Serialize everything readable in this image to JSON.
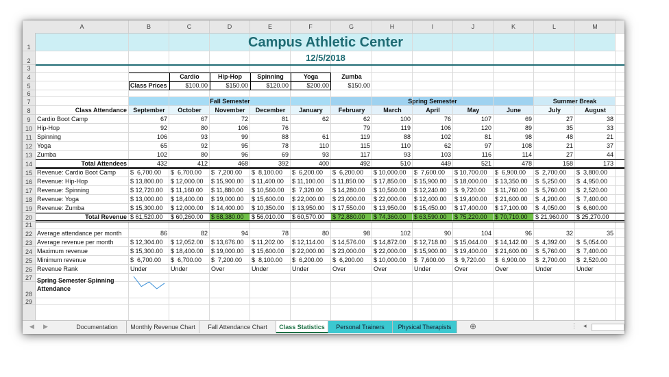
{
  "columns": [
    "A",
    "B",
    "C",
    "D",
    "E",
    "F",
    "G",
    "H",
    "I",
    "J",
    "K",
    "L",
    "M"
  ],
  "rows": [
    "1",
    "2",
    "3",
    "4",
    "5",
    "6",
    "7",
    "8",
    "9",
    "10",
    "11",
    "12",
    "13",
    "14",
    "15",
    "16",
    "17",
    "18",
    "19",
    "20",
    "21",
    "22",
    "23",
    "24",
    "25",
    "26",
    "27",
    "28",
    "29"
  ],
  "title": "Campus Athletic Center",
  "date": "12/5/2018",
  "prices": {
    "label": "Class Prices",
    "headers": [
      "Cardio",
      "Hip-Hop",
      "Spinning",
      "Yoga",
      "Zumba"
    ],
    "values": [
      "$100.00",
      "$150.00",
      "$120.00",
      "$200.00",
      "$150.00"
    ]
  },
  "groups": {
    "fall": "Fall Semester",
    "spring": "Spring Semester",
    "summer": "Summer Break"
  },
  "attendance_label": "Class Attendance",
  "months": [
    "September",
    "October",
    "November",
    "December",
    "January",
    "February",
    "March",
    "April",
    "May",
    "June",
    "July",
    "August"
  ],
  "attendance": [
    {
      "name": "Cardio Boot Camp",
      "values": [
        "67",
        "67",
        "72",
        "81",
        "62",
        "62",
        "100",
        "76",
        "107",
        "69",
        "27",
        "38"
      ]
    },
    {
      "name": "Hip-Hop",
      "values": [
        "92",
        "80",
        "106",
        "76",
        "",
        "79",
        "119",
        "106",
        "120",
        "89",
        "35",
        "33"
      ]
    },
    {
      "name": "Spinning",
      "values": [
        "106",
        "93",
        "99",
        "88",
        "61",
        "119",
        "88",
        "102",
        "81",
        "98",
        "48",
        "21"
      ]
    },
    {
      "name": "Yoga",
      "values": [
        "65",
        "92",
        "95",
        "78",
        "110",
        "115",
        "110",
        "62",
        "97",
        "108",
        "21",
        "37"
      ]
    },
    {
      "name": "Zumba",
      "values": [
        "102",
        "80",
        "96",
        "69",
        "93",
        "117",
        "93",
        "103",
        "116",
        "114",
        "27",
        "44"
      ]
    }
  ],
  "total_attendees": {
    "label": "Total Attendees",
    "values": [
      "432",
      "412",
      "468",
      "392",
      "400",
      "492",
      "510",
      "449",
      "521",
      "478",
      "158",
      "173"
    ]
  },
  "revenue": [
    {
      "name": "Revenue: Cardio Boot Camp",
      "values": [
        "$  6,700.00",
        "$  6,700.00",
        "$  7,200.00",
        "$  8,100.00",
        "$  6,200.00",
        "$  6,200.00",
        "$ 10,000.00",
        "$  7,600.00",
        "$ 10,700.00",
        "$  6,900.00",
        "$  2,700.00",
        "$  3,800.00"
      ]
    },
    {
      "name": "Revenue: Hip-Hop",
      "values": [
        "$ 13,800.00",
        "$ 12,000.00",
        "$ 15,900.00",
        "$ 11,400.00",
        "$ 11,100.00",
        "$ 11,850.00",
        "$ 17,850.00",
        "$ 15,900.00",
        "$ 18,000.00",
        "$ 13,350.00",
        "$  5,250.00",
        "$  4,950.00"
      ]
    },
    {
      "name": "Revenue: Spinning",
      "values": [
        "$ 12,720.00",
        "$ 11,160.00",
        "$ 11,880.00",
        "$ 10,560.00",
        "$  7,320.00",
        "$ 14,280.00",
        "$ 10,560.00",
        "$ 12,240.00",
        "$  9,720.00",
        "$ 11,760.00",
        "$  5,760.00",
        "$  2,520.00"
      ]
    },
    {
      "name": "Revenue: Yoga",
      "values": [
        "$ 13,000.00",
        "$ 18,400.00",
        "$ 19,000.00",
        "$ 15,600.00",
        "$ 22,000.00",
        "$ 23,000.00",
        "$ 22,000.00",
        "$ 12,400.00",
        "$ 19,400.00",
        "$ 21,600.00",
        "$  4,200.00",
        "$  7,400.00"
      ]
    },
    {
      "name": "Revenue: Zumba",
      "values": [
        "$ 15,300.00",
        "$ 12,000.00",
        "$ 14,400.00",
        "$ 10,350.00",
        "$ 13,950.00",
        "$ 17,550.00",
        "$ 13,950.00",
        "$ 15,450.00",
        "$ 17,400.00",
        "$ 17,100.00",
        "$  4,050.00",
        "$  6,600.00"
      ]
    }
  ],
  "total_revenue": {
    "label": "Total Revenue",
    "values": [
      "$ 61,520.00",
      "$ 60,260.00",
      "$ 68,380.00",
      "$ 56,010.00",
      "$ 60,570.00",
      "$ 72,880.00",
      "$ 74,360.00",
      "$ 63,590.00",
      "$ 75,220.00",
      "$ 70,710.00",
      "$ 21,960.00",
      "$ 25,270.00"
    ],
    "highlight": [
      false,
      false,
      true,
      false,
      false,
      true,
      true,
      true,
      true,
      true,
      false,
      false
    ]
  },
  "stats": [
    {
      "name": "Average attendance per month",
      "values": [
        "86",
        "82",
        "94",
        "78",
        "80",
        "98",
        "102",
        "90",
        "104",
        "96",
        "32",
        "35"
      ]
    },
    {
      "name": "Average revenue per month",
      "values": [
        "$ 12,304.00",
        "$ 12,052.00",
        "$ 13,676.00",
        "$ 11,202.00",
        "$ 12,114.00",
        "$ 14,576.00",
        "$ 14,872.00",
        "$ 12,718.00",
        "$ 15,044.00",
        "$ 14,142.00",
        "$  4,392.00",
        "$  5,054.00"
      ]
    },
    {
      "name": "Maximum revenue",
      "values": [
        "$ 15,300.00",
        "$ 18,400.00",
        "$ 19,000.00",
        "$ 15,600.00",
        "$ 22,000.00",
        "$ 23,000.00",
        "$ 22,000.00",
        "$ 15,900.00",
        "$ 19,400.00",
        "$ 21,600.00",
        "$  5,760.00",
        "$  7,400.00"
      ]
    },
    {
      "name": "Minimum revenue",
      "values": [
        "$  6,700.00",
        "$  6,700.00",
        "$  7,200.00",
        "$  8,100.00",
        "$  6,200.00",
        "$  6,200.00",
        "$ 10,000.00",
        "$  7,600.00",
        "$  9,720.00",
        "$  6,900.00",
        "$  2,700.00",
        "$  2,520.00"
      ]
    },
    {
      "name": "Revenue Rank",
      "values": [
        "Under",
        "Under",
        "Over",
        "Under",
        "Under",
        "Over",
        "Over",
        "Under",
        "Over",
        "Over",
        "Under",
        "Under"
      ]
    }
  ],
  "sparkline": {
    "label": "Spring Semester Spinning Attendance",
    "values": [
      119,
      88,
      102,
      81,
      98
    ]
  },
  "tabs": [
    "Documentation",
    "Monthly Revenue Chart",
    "Fall Attendance Chart",
    "Class Statistics",
    "Personal Trainers",
    "Physical Therapists"
  ],
  "active_tab": "Class Statistics",
  "colors": {
    "title_band": "#cdeff5",
    "fall_band": "#a7dcf5",
    "spring_band": "#9fd2f0",
    "summer_band": "#cdeaf7",
    "highlight_green": "#6fbf47",
    "title_text": "#1e6b73",
    "teal_tab": "#3cc8d0"
  }
}
